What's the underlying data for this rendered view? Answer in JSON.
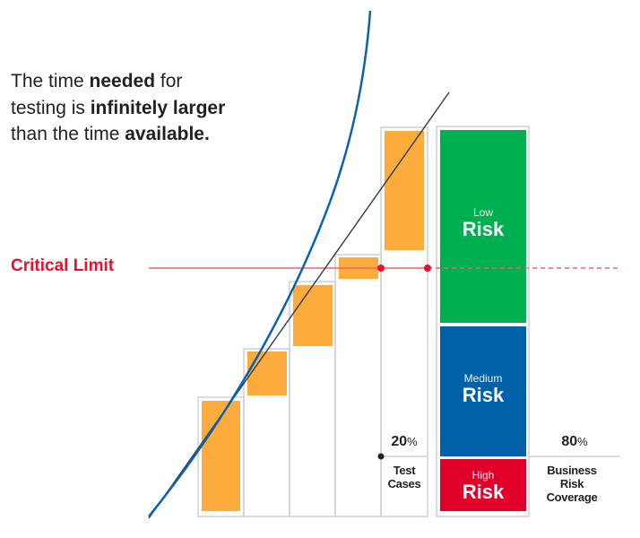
{
  "intro": {
    "p1": "The time ",
    "b1": "needed",
    "p2": " for testing is ",
    "b2": "infinitely larger",
    "p3": " than the time ",
    "b3": "available."
  },
  "critical_limit": "Critical Limit",
  "test_cases": {
    "percent": "20",
    "percent_sign": "%",
    "label_line1": "Test",
    "label_line2": "Cases"
  },
  "business_risk": {
    "percent": "80",
    "percent_sign": "%",
    "label_line1": "Business",
    "label_line2": "Risk",
    "label_line3": "Coverage"
  },
  "risk_blocks": [
    {
      "small": "Low",
      "big": "Risk",
      "color": "#00b050"
    },
    {
      "small": "Medium",
      "big": "Risk",
      "color": "#0060a8"
    },
    {
      "small": "High",
      "big": "Risk",
      "color": "#e0002a"
    }
  ],
  "colors": {
    "orange": "#fbac3c",
    "critical": "#e8112d",
    "curve": "#0a62b0",
    "line": "#3b4450",
    "grid": "#cfcfcf"
  }
}
